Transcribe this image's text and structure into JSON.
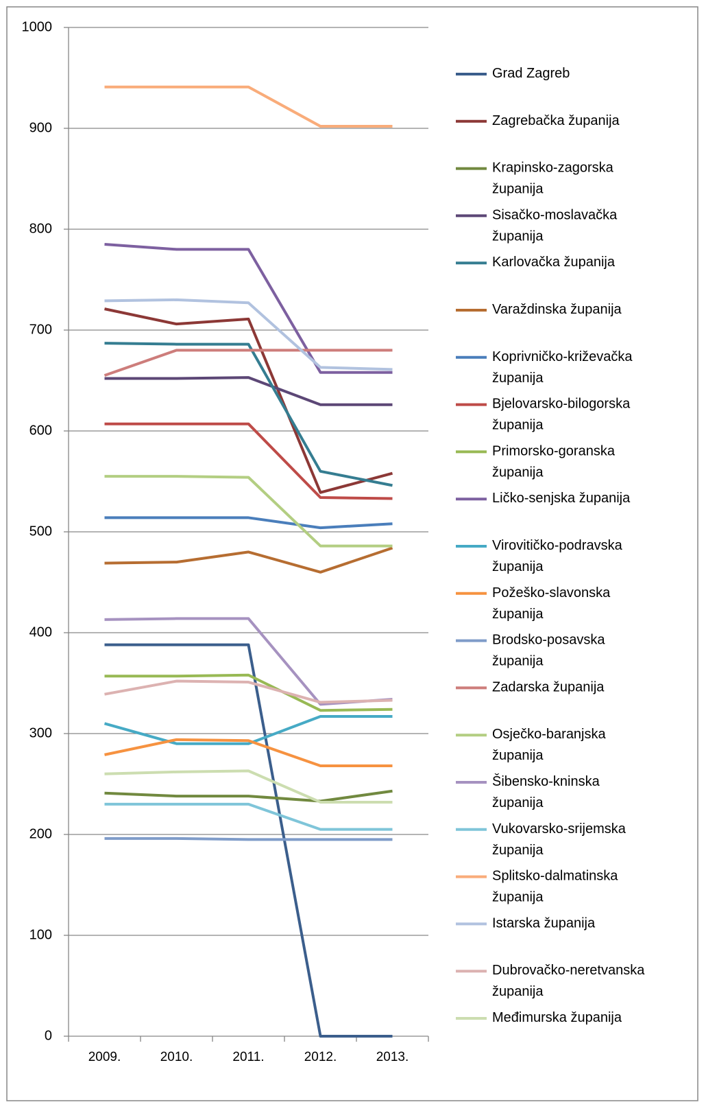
{
  "chart_data": {
    "type": "line",
    "categories": [
      "2009.",
      "2010.",
      "2011.",
      "2012.",
      "2013."
    ],
    "ylim": [
      0,
      1000
    ],
    "yticks": [
      0,
      100,
      200,
      300,
      400,
      500,
      600,
      700,
      800,
      900,
      1000
    ],
    "grid": true,
    "legend": "right",
    "series": [
      {
        "name": "Grad Zagreb",
        "color": "#3B5E8C",
        "values": [
          388,
          388,
          388,
          0,
          0
        ]
      },
      {
        "name": "Zagrebačka županija",
        "color": "#8C3836",
        "values": [
          721,
          706,
          711,
          539,
          558
        ]
      },
      {
        "name": "Krapinsko-zagorska županija",
        "color": "#71893F",
        "values": [
          241,
          238,
          238,
          233,
          243
        ]
      },
      {
        "name": "Sisačko-moslavačka županija",
        "color": "#5C4776",
        "values": [
          652,
          652,
          653,
          626,
          626
        ]
      },
      {
        "name": "Karlovačka županija",
        "color": "#357D91",
        "values": [
          687,
          686,
          686,
          560,
          546
        ]
      },
      {
        "name": "Varaždinska županija",
        "color": "#B66D31",
        "values": [
          469,
          470,
          480,
          460,
          484
        ]
      },
      {
        "name": "Koprivničko-križevačka županija",
        "color": "#4A7EBB",
        "values": [
          514,
          514,
          514,
          504,
          508
        ]
      },
      {
        "name": "Bjelovarsko-bilogorska županija",
        "color": "#BE4B48",
        "values": [
          607,
          607,
          607,
          534,
          533
        ]
      },
      {
        "name": "Primorsko-goranska županija",
        "color": "#98B954",
        "values": [
          357,
          357,
          358,
          323,
          324
        ]
      },
      {
        "name": "Ličko-senjska županija",
        "color": "#7D60A0",
        "values": [
          785,
          780,
          780,
          658,
          658
        ]
      },
      {
        "name": "Virovitičko-podravska županija",
        "color": "#46AAC5",
        "values": [
          310,
          290,
          290,
          317,
          317
        ]
      },
      {
        "name": "Požeško-slavonska županija",
        "color": "#F69240",
        "values": [
          279,
          294,
          293,
          268,
          268
        ]
      },
      {
        "name": "Brodsko-posavska županija",
        "color": "#7F9CC9",
        "values": [
          196,
          196,
          195,
          195,
          195
        ]
      },
      {
        "name": "Zadarska županija",
        "color": "#CD7D7B",
        "values": [
          655,
          680,
          680,
          680,
          680
        ]
      },
      {
        "name": "Osječko-baranjska županija",
        "color": "#B3CE82",
        "values": [
          555,
          555,
          554,
          486,
          486
        ]
      },
      {
        "name": "Šibensko-kninska županija",
        "color": "#A692C0",
        "values": [
          413,
          414,
          414,
          329,
          334
        ]
      },
      {
        "name": "Vukovarsko-srijemska županija",
        "color": "#7FC5D9",
        "values": [
          230,
          230,
          230,
          205,
          205
        ]
      },
      {
        "name": "Splitsko-dalmatinska županija",
        "color": "#F9AC7A",
        "values": [
          941,
          941,
          941,
          902,
          902
        ]
      },
      {
        "name": "Istarska županija",
        "color": "#B1C2DF",
        "values": [
          729,
          730,
          727,
          663,
          661
        ]
      },
      {
        "name": "Dubrovačko-neretvanska županija",
        "color": "#DCB2B1",
        "values": [
          339,
          352,
          351,
          331,
          333
        ]
      },
      {
        "name": "Međimurska županija",
        "color": "#CCDDB0",
        "values": [
          260,
          262,
          263,
          232,
          232
        ]
      }
    ]
  }
}
